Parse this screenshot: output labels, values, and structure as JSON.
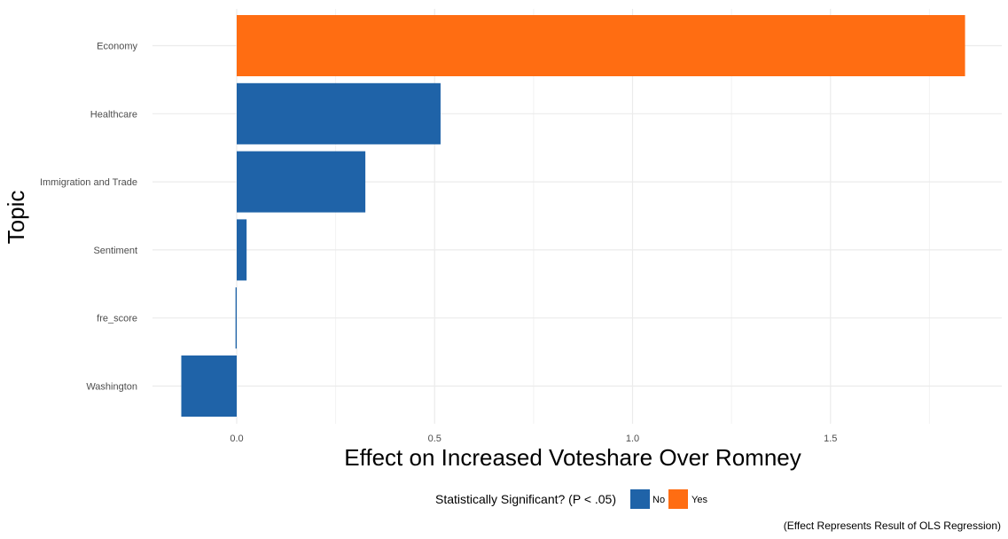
{
  "chart_data": {
    "type": "bar",
    "orientation": "horizontal",
    "categories": [
      "Economy",
      "Healthcare",
      "Immigration and Trade",
      "Sentiment",
      "fre_score",
      "Washington"
    ],
    "values": [
      1.84,
      0.515,
      0.325,
      0.025,
      -0.003,
      -0.14
    ],
    "significant": [
      "Yes",
      "No",
      "No",
      "No",
      "No",
      "No"
    ],
    "xlabel": "Effect on Increased Voteshare Over Romney",
    "ylabel": "Topic",
    "xlim": [
      -0.2,
      1.94
    ],
    "xticks": [
      "0.0",
      "0.5",
      "1.0",
      "1.5"
    ],
    "xtick_values": [
      0,
      0.5,
      1.0,
      1.5
    ],
    "grid": true,
    "legend": {
      "title": "Statistically Significant? (P < .05)",
      "placement": "bottom",
      "entries": [
        {
          "label": "No",
          "color": "#1f63a8"
        },
        {
          "label": "Yes",
          "color": "#ff6d12"
        }
      ]
    },
    "caption": "(Effect Represents Result of OLS Regression)"
  }
}
